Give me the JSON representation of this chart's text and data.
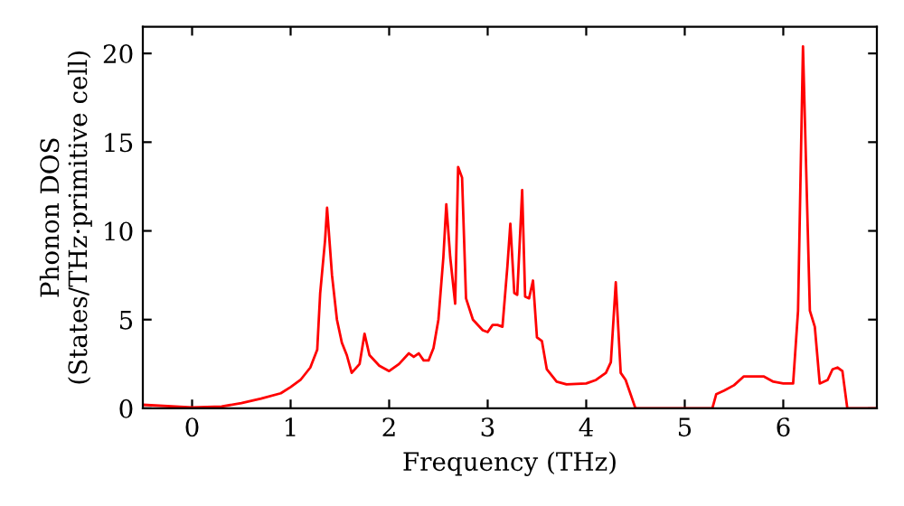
{
  "chart_data": {
    "type": "line",
    "xlabel": "Frequency (THz)",
    "ylabel": "Phonon DOS\n(States/THz·primitive cell)",
    "xlim": [
      -0.5,
      6.95
    ],
    "ylim": [
      0,
      21.5
    ],
    "xticks": [
      0,
      1,
      2,
      3,
      4,
      5,
      6
    ],
    "yticks": [
      0,
      5,
      10,
      15,
      20
    ],
    "grid": false,
    "marker": "none",
    "line_style": "solid",
    "series": [
      {
        "color": "#ff0000",
        "x": [
          -0.5,
          0,
          0.3,
          0.5,
          0.7,
          0.9,
          1.0,
          1.1,
          1.2,
          1.27,
          1.3,
          1.35,
          1.37,
          1.42,
          1.47,
          1.52,
          1.57,
          1.62,
          1.7,
          1.75,
          1.8,
          1.9,
          2.0,
          2.1,
          2.2,
          2.25,
          2.3,
          2.35,
          2.4,
          2.45,
          2.5,
          2.55,
          2.58,
          2.62,
          2.67,
          2.7,
          2.74,
          2.78,
          2.85,
          2.95,
          3.0,
          3.05,
          3.1,
          3.15,
          3.2,
          3.23,
          3.27,
          3.3,
          3.35,
          3.38,
          3.42,
          3.46,
          3.5,
          3.55,
          3.6,
          3.7,
          3.8,
          4.0,
          4.1,
          4.2,
          4.25,
          4.3,
          4.35,
          4.4,
          4.5,
          5.28,
          5.32,
          5.4,
          5.5,
          5.6,
          5.8,
          5.9,
          6.0,
          6.1,
          6.15,
          6.2,
          6.27,
          6.32,
          6.37,
          6.45,
          6.5,
          6.55,
          6.6,
          6.65,
          6.95
        ],
        "values": [
          0.2,
          0.05,
          0.1,
          0.3,
          0.55,
          0.85,
          1.2,
          1.6,
          2.3,
          3.3,
          6.5,
          9.5,
          11.3,
          7.5,
          5.0,
          3.7,
          3.0,
          2.0,
          2.5,
          4.2,
          3.0,
          2.4,
          2.1,
          2.5,
          3.1,
          2.9,
          3.1,
          2.7,
          2.7,
          3.4,
          5.0,
          8.5,
          11.5,
          8.5,
          5.9,
          13.6,
          13.0,
          6.2,
          5.0,
          4.4,
          4.3,
          4.7,
          4.7,
          4.6,
          8.0,
          10.4,
          6.5,
          6.4,
          12.3,
          6.3,
          6.2,
          7.2,
          4.0,
          3.8,
          2.2,
          1.5,
          1.35,
          1.4,
          1.6,
          2.0,
          2.6,
          7.1,
          2.0,
          1.6,
          0,
          0,
          0.8,
          1.0,
          1.3,
          1.8,
          1.8,
          1.5,
          1.4,
          1.4,
          5.5,
          20.4,
          5.5,
          4.6,
          1.4,
          1.6,
          2.2,
          2.3,
          2.1,
          0,
          0
        ]
      }
    ]
  }
}
